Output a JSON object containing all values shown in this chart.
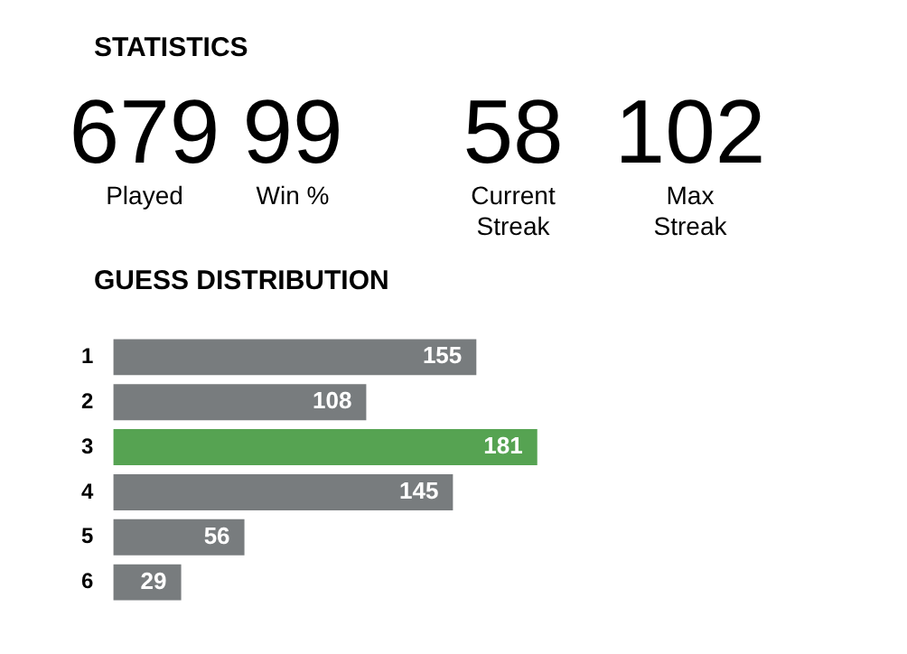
{
  "chart_data": [
    {
      "type": "other",
      "title": "STATISTICS",
      "categories": [
        "Played",
        "Win %",
        "Current Streak",
        "Max Streak"
      ],
      "values": [
        679,
        99,
        58,
        102
      ],
      "data_labels": true
    },
    {
      "type": "bar",
      "title": "GUESS DISTRIBUTION",
      "orientation": "horizontal",
      "categories": [
        "1",
        "2",
        "3",
        "4",
        "5",
        "6"
      ],
      "values": [
        155,
        108,
        181,
        145,
        56,
        29
      ],
      "colors": [
        "#787c7e",
        "#787c7e",
        "#56a352",
        "#787c7e",
        "#787c7e",
        "#787c7e"
      ],
      "data_labels": true
    }
  ]
}
